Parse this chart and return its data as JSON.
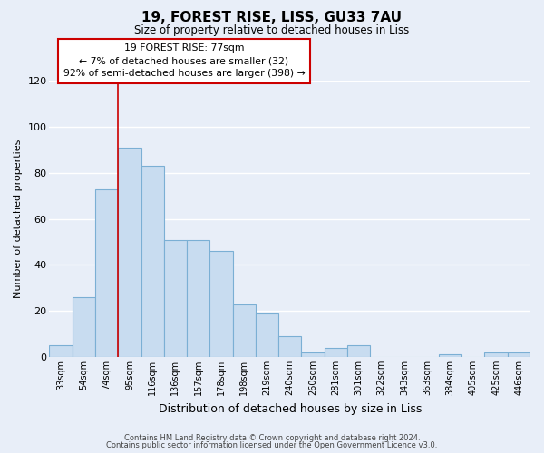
{
  "title": "19, FOREST RISE, LISS, GU33 7AU",
  "subtitle": "Size of property relative to detached houses in Liss",
  "xlabel": "Distribution of detached houses by size in Liss",
  "ylabel": "Number of detached properties",
  "footer_line1": "Contains HM Land Registry data © Crown copyright and database right 2024.",
  "footer_line2": "Contains public sector information licensed under the Open Government Licence v3.0.",
  "categories": [
    "33sqm",
    "54sqm",
    "74sqm",
    "95sqm",
    "116sqm",
    "136sqm",
    "157sqm",
    "178sqm",
    "198sqm",
    "219sqm",
    "240sqm",
    "260sqm",
    "281sqm",
    "301sqm",
    "322sqm",
    "343sqm",
    "363sqm",
    "384sqm",
    "405sqm",
    "425sqm",
    "446sqm"
  ],
  "values": [
    5,
    26,
    73,
    91,
    83,
    51,
    51,
    46,
    23,
    19,
    9,
    2,
    4,
    5,
    0,
    0,
    0,
    1,
    0,
    2,
    2
  ],
  "bar_color": "#c8dcf0",
  "bar_edge_color": "#7bafd4",
  "vline_color": "#cc0000",
  "vline_x_index": 2,
  "annotation_line1": "19 FOREST RISE: 77sqm",
  "annotation_line2": "← 7% of detached houses are smaller (32)",
  "annotation_line3": "92% of semi-detached houses are larger (398) →",
  "annotation_box_facecolor": "#ffffff",
  "annotation_box_edgecolor": "#cc0000",
  "ylim": [
    0,
    120
  ],
  "yticks": [
    0,
    20,
    40,
    60,
    80,
    100,
    120
  ],
  "plot_bg_color": "#e8eef8",
  "fig_bg_color": "#e8eef8",
  "grid_color": "#ffffff",
  "figsize": [
    6.0,
    5.0
  ],
  "dpi": 100
}
